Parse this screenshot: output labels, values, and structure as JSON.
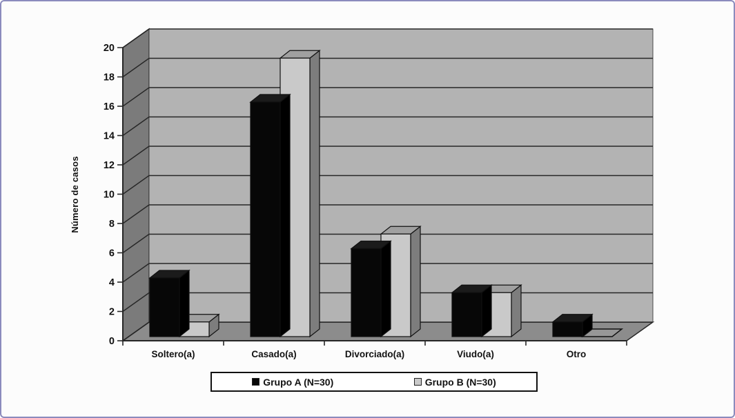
{
  "chart_data": {
    "type": "bar",
    "style": "3d-clustered-columns",
    "title": "",
    "categories": [
      "Soltero(a)",
      "Casado(a)",
      "Divorciado(a)",
      "Viudo(a)",
      "Otro"
    ],
    "series": [
      {
        "name": "Grupo A (N=30)",
        "values": [
          4,
          16,
          6,
          3,
          1
        ],
        "color_front": "#070707",
        "color_side": "#000000",
        "color_top": "#1b1b1b"
      },
      {
        "name": "Grupo B (N=30)",
        "values": [
          1,
          19,
          7,
          3,
          0
        ],
        "color_front": "#c9c9c9",
        "color_side": "#7d7d7d",
        "color_top": "#a0a0a0"
      }
    ],
    "xlabel": "",
    "ylabel": "Número de casos",
    "ylim": [
      0,
      20
    ],
    "ytick_step": 2,
    "ytick_labels": [
      "0",
      "2",
      "4",
      "6",
      "8",
      "10",
      "12",
      "14",
      "16",
      "18",
      "20"
    ],
    "grid": true,
    "legend_position": "bottom"
  },
  "frame": {
    "border_color": "#8b8bbd",
    "background": "#fcfcfc"
  },
  "colors": {
    "back_wall": "#b3b3b3",
    "side_wall": "#7b7b7b",
    "floor": "#8c8c8c",
    "zero_marker_fill": "#979797",
    "line": "#262626",
    "text": "#111111"
  }
}
